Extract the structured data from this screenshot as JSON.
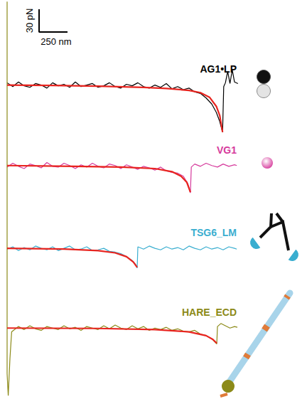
{
  "chart_data": {
    "type": "line",
    "tick_labels": false,
    "grid": false,
    "xlim": [
      0,
      2100
    ],
    "scale_bar": {
      "x": 250,
      "x_label": "250 nm",
      "y": 30,
      "y_label": "30 pN"
    },
    "panels": [
      {
        "ylim": [
          -112,
          420
        ],
        "series": [
          {
            "name": "AG1•LP",
            "color": "#000000",
            "x": [
              0,
              50,
              100,
              150,
              200,
              250,
              300,
              350,
              400,
              450,
              500,
              550,
              600,
              650,
              700,
              750,
              800,
              850,
              900,
              950,
              1000,
              1050,
              1100,
              1150,
              1200,
              1250,
              1300,
              1350,
              1400,
              1450,
              1500,
              1550,
              1600,
              1650,
              1700,
              1750,
              1800,
              1840,
              1870,
              1895,
              1905,
              1920,
              1940,
              1960,
              1980,
              2000,
              2030
            ],
            "values": [
              -3,
              2,
              -4,
              1,
              3,
              -2,
              0,
              4,
              -3,
              1,
              -1,
              3,
              -4,
              2,
              0,
              -2,
              3,
              1,
              -3,
              2,
              4,
              -1,
              1,
              -3,
              2,
              4,
              0,
              3,
              -2,
              5,
              2,
              6,
              4,
              9,
              11,
              17,
              25,
              36,
              48,
              62,
              2,
              -3,
              -18,
              -2,
              -20,
              -4,
              -2
            ]
          },
          {
            "color": "#e8241f",
            "x": [
              0,
              400,
              800,
              1200,
              1400,
              1600,
              1700,
              1780,
              1840,
              1870,
              1895
            ],
            "values": [
              0,
              0.5,
              1.5,
              3,
              4.5,
              7,
              10,
              16,
              28,
              40,
              62
            ]
          }
        ]
      },
      {
        "ylim": [
          -218,
          314
        ],
        "series": [
          {
            "name": "VG1",
            "color": "#d63a9c",
            "x": [
              0,
              50,
              100,
              150,
              200,
              250,
              300,
              350,
              400,
              450,
              500,
              550,
              600,
              650,
              700,
              750,
              800,
              850,
              900,
              950,
              1000,
              1050,
              1100,
              1150,
              1200,
              1250,
              1300,
              1350,
              1400,
              1450,
              1500,
              1550,
              1590,
              1612,
              1620,
              1650,
              1700,
              1750,
              1800,
              1850,
              1900,
              1950,
              2000,
              2020
            ],
            "values": [
              2,
              -3,
              1,
              4,
              -2,
              0,
              3,
              -4,
              1,
              2,
              -3,
              0,
              4,
              -1,
              2,
              -3,
              1,
              3,
              -2,
              0,
              4,
              -1,
              2,
              5,
              1,
              3,
              6,
              2,
              7,
              9,
              10,
              14,
              24,
              36,
              2,
              -2,
              1,
              -3,
              0,
              2,
              -2,
              1,
              -1,
              0
            ]
          },
          {
            "color": "#e8241f",
            "x": [
              0,
              600,
              1000,
              1300,
              1450,
              1530,
              1580,
              1612
            ],
            "values": [
              0,
              1,
              2,
              4,
              8,
              14,
              22,
              35
            ]
          }
        ]
      },
      {
        "ylim": [
          -327,
          205
        ],
        "series": [
          {
            "name": "TSG6_LM",
            "color": "#3aaed0",
            "x": [
              0,
              50,
              100,
              150,
              200,
              250,
              300,
              350,
              400,
              450,
              500,
              550,
              600,
              650,
              700,
              750,
              800,
              850,
              900,
              950,
              1000,
              1050,
              1100,
              1130,
              1144,
              1150,
              1200,
              1250,
              1300,
              1350,
              1400,
              1450,
              1500,
              1550,
              1600,
              1650,
              1700,
              1750,
              1800,
              1850,
              1900,
              1950,
              2000,
              2020
            ],
            "values": [
              1,
              -2,
              3,
              -1,
              2,
              -3,
              0,
              2,
              -2,
              3,
              0,
              -3,
              2,
              1,
              -2,
              3,
              2,
              0,
              4,
              5,
              7,
              11,
              16,
              21,
              26,
              -2,
              1,
              -3,
              0,
              2,
              -2,
              1,
              -1,
              2,
              -3,
              0,
              2,
              -2,
              1,
              -1,
              2,
              -2,
              0,
              1
            ]
          },
          {
            "color": "#e8241f",
            "x": [
              0,
              500,
              800,
              950,
              1050,
              1110,
              1144
            ],
            "values": [
              0,
              1,
              3,
              6,
              11,
              18,
              25
            ]
          }
        ]
      },
      {
        "ylim": [
          -432,
          100
        ],
        "series": [
          {
            "name": "HARE_ECD",
            "color": "#8c8a18",
            "x": [
              0,
              0,
              10,
              25,
              40,
              100,
              150,
              200,
              250,
              300,
              350,
              400,
              450,
              500,
              550,
              600,
              650,
              700,
              750,
              800,
              850,
              900,
              950,
              1000,
              1050,
              1100,
              1150,
              1200,
              1250,
              1300,
              1350,
              1400,
              1450,
              1500,
              1550,
              1600,
              1650,
              1700,
              1750,
              1800,
              1844,
              1850,
              1880,
              1920,
              1960,
              2000,
              2025
            ],
            "values": [
              -430,
              60,
              89,
              40,
              5,
              -2,
              2,
              -3,
              1,
              3,
              -2,
              0,
              2,
              -3,
              1,
              -1,
              3,
              -2,
              0,
              2,
              -3,
              1,
              -4,
              0,
              2,
              -3,
              1,
              -2,
              3,
              0,
              2,
              -1,
              3,
              1,
              4,
              5,
              3,
              8,
              10,
              14,
              21,
              -2,
              -6,
              -3,
              0,
              -2,
              -1
            ]
          },
          {
            "color": "#e8241f",
            "x": [
              0,
              800,
              1300,
              1600,
              1750,
              1810,
              1844
            ],
            "values": [
              0,
              0.5,
              2,
              5,
              10,
              15,
              20
            ]
          }
        ]
      }
    ]
  }
}
